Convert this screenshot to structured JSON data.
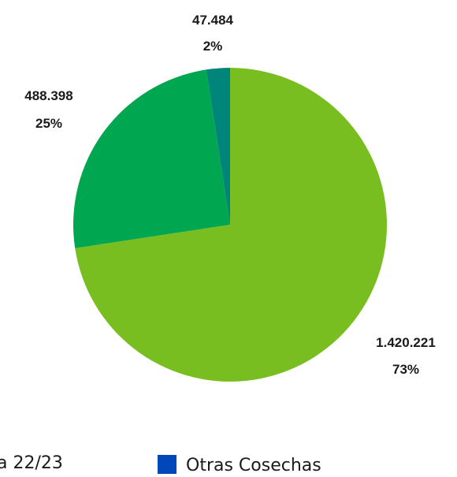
{
  "chart_data": {
    "type": "pie",
    "slices": [
      {
        "value_label": "1.420.221",
        "percent_label": "73%",
        "value": 1420221,
        "color": "#78be20"
      },
      {
        "value_label": "488.398",
        "percent_label": "25%",
        "value": 488398,
        "color": "#00a650"
      },
      {
        "value_label": "47.484",
        "percent_label": "2%",
        "value": 47484,
        "color": "#00857a"
      }
    ],
    "legend": [
      {
        "label": "a 22/23",
        "color": "#78be20"
      },
      {
        "label": "Otras Cosechas",
        "color": "#0047ba"
      }
    ],
    "legend_placement": "bottom",
    "start": "12 o'clock",
    "direction": "clockwise"
  }
}
